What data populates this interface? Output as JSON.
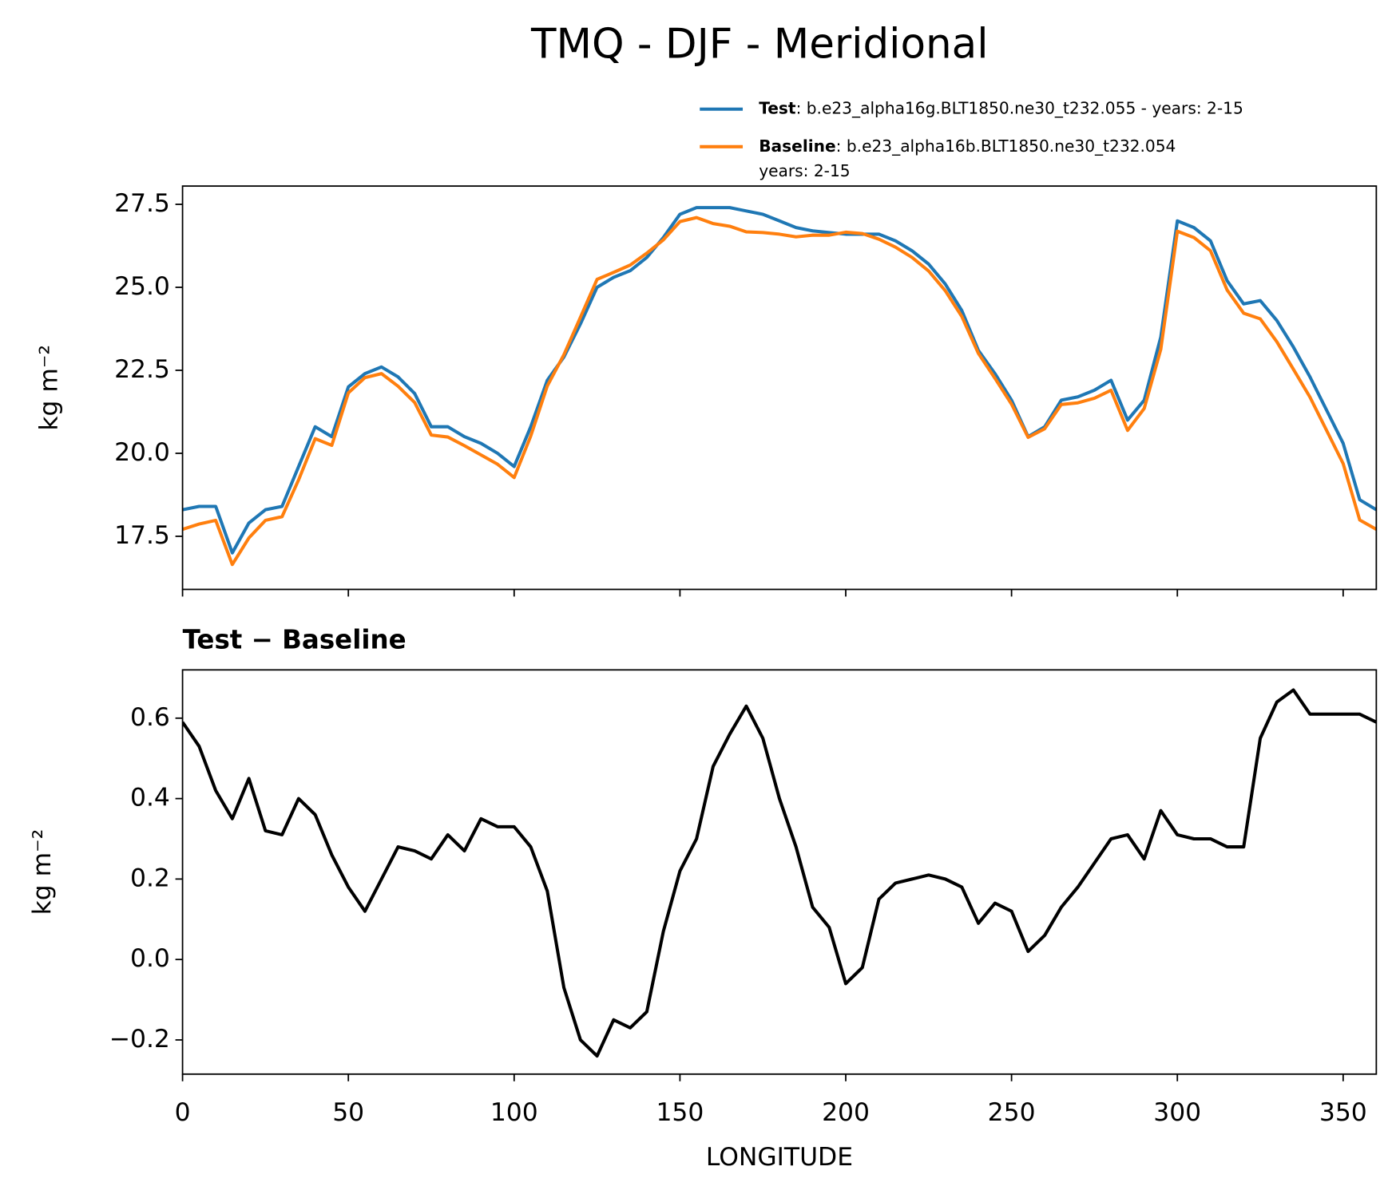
{
  "chart_data": [
    {
      "type": "line",
      "title": "TMQ - DJF - Meridional",
      "ylabel": "kg m⁻²",
      "x": [
        0,
        5,
        10,
        15,
        20,
        25,
        30,
        35,
        40,
        45,
        50,
        55,
        60,
        65,
        70,
        75,
        80,
        85,
        90,
        95,
        100,
        105,
        110,
        115,
        120,
        125,
        130,
        135,
        140,
        145,
        150,
        155,
        160,
        165,
        170,
        175,
        180,
        185,
        190,
        195,
        200,
        205,
        210,
        215,
        220,
        225,
        230,
        235,
        240,
        245,
        250,
        255,
        260,
        265,
        270,
        275,
        280,
        285,
        290,
        295,
        300,
        305,
        310,
        315,
        320,
        325,
        330,
        335,
        340,
        345,
        350,
        355,
        360
      ],
      "series": [
        {
          "name": "Test",
          "legend_text": [
            ": b.e23_alpha16g.BLT1850.ne30_t232.055 - years: 2-15"
          ],
          "color": "#1f77b4",
          "values": [
            18.3,
            18.4,
            18.4,
            17.0,
            17.9,
            18.3,
            18.4,
            19.6,
            20.8,
            20.5,
            22.0,
            22.4,
            22.6,
            22.3,
            21.8,
            20.8,
            20.8,
            20.5,
            20.3,
            20.0,
            19.6,
            20.8,
            22.2,
            22.9,
            23.9,
            25.0,
            25.3,
            25.5,
            25.9,
            26.5,
            27.2,
            27.4,
            27.4,
            27.4,
            27.3,
            27.2,
            27.0,
            26.8,
            26.7,
            26.65,
            26.6,
            26.6,
            26.6,
            26.4,
            26.1,
            25.7,
            25.1,
            24.3,
            23.1,
            22.4,
            21.6,
            20.5,
            20.8,
            21.6,
            21.7,
            21.9,
            22.2,
            21.0,
            21.6,
            23.5,
            27.0,
            26.8,
            26.4,
            25.2,
            24.5,
            24.6,
            24.0,
            23.2,
            22.3,
            21.3,
            20.3,
            18.6,
            18.3
          ]
        },
        {
          "name": "Baseline",
          "legend_text": [
            ": b.e23_alpha16b.BLT1850.ne30_t232.054",
            "years: 2-15"
          ],
          "color": "#ff7f0e",
          "values": [
            17.71,
            17.87,
            17.98,
            16.65,
            17.45,
            17.98,
            18.09,
            19.2,
            20.44,
            20.24,
            21.82,
            22.28,
            22.4,
            22.02,
            21.53,
            20.55,
            20.49,
            20.23,
            19.95,
            19.67,
            19.27,
            20.52,
            22.03,
            22.97,
            24.1,
            25.24,
            25.45,
            25.67,
            26.03,
            26.43,
            26.98,
            27.1,
            26.92,
            26.84,
            26.67,
            26.65,
            26.6,
            26.52,
            26.57,
            26.57,
            26.66,
            26.62,
            26.45,
            26.21,
            25.9,
            25.49,
            24.9,
            24.12,
            23.01,
            22.26,
            21.48,
            20.48,
            20.74,
            21.47,
            21.52,
            21.66,
            21.9,
            20.69,
            21.35,
            23.13,
            26.69,
            26.5,
            26.1,
            24.92,
            24.22,
            24.05,
            23.36,
            22.53,
            21.69,
            20.69,
            19.69,
            17.99,
            17.71
          ]
        }
      ],
      "xlim": [
        0,
        360
      ],
      "xticks": [
        0,
        50,
        100,
        150,
        200,
        250,
        300,
        350
      ],
      "show_xtick_labels": false,
      "ylim": [
        15.9,
        28.05
      ],
      "yticks": [
        17.5,
        {
          "value": 20,
          "label": "20.0"
        },
        22.5,
        {
          "value": 25,
          "label": "25.0"
        },
        27.5
      ],
      "legend": "upper right"
    },
    {
      "type": "line",
      "title": "Test − Baseline",
      "ylabel": "kg m⁻²",
      "xlabel": "LONGITUDE",
      "x": [
        0,
        5,
        10,
        15,
        20,
        25,
        30,
        35,
        40,
        45,
        50,
        55,
        60,
        65,
        70,
        75,
        80,
        85,
        90,
        95,
        100,
        105,
        110,
        115,
        120,
        125,
        130,
        135,
        140,
        145,
        150,
        155,
        160,
        165,
        170,
        175,
        180,
        185,
        190,
        195,
        200,
        205,
        210,
        215,
        220,
        225,
        230,
        235,
        240,
        245,
        250,
        255,
        260,
        265,
        270,
        275,
        280,
        285,
        290,
        295,
        300,
        305,
        310,
        315,
        320,
        325,
        330,
        335,
        340,
        345,
        350,
        355,
        360
      ],
      "values": [
        0.59,
        0.53,
        0.42,
        0.35,
        0.45,
        0.32,
        0.31,
        0.4,
        0.36,
        0.26,
        0.18,
        0.12,
        0.2,
        0.28,
        0.27,
        0.25,
        0.31,
        0.27,
        0.35,
        0.33,
        0.33,
        0.28,
        0.17,
        -0.07,
        -0.2,
        -0.24,
        -0.15,
        -0.17,
        -0.13,
        0.07,
        0.22,
        0.3,
        0.48,
        0.56,
        0.63,
        0.55,
        0.4,
        0.28,
        0.13,
        0.08,
        -0.06,
        -0.02,
        0.15,
        0.19,
        0.2,
        0.21,
        0.2,
        0.18,
        0.09,
        0.14,
        0.12,
        0.02,
        0.06,
        0.13,
        0.18,
        0.24,
        0.3,
        0.31,
        0.25,
        0.37,
        0.31,
        0.3,
        0.3,
        0.28,
        0.28,
        0.55,
        0.64,
        0.67,
        0.61,
        0.61,
        0.61,
        0.61,
        0.59
      ],
      "color": "#000000",
      "xlim": [
        0,
        360
      ],
      "xticks": [
        0,
        50,
        100,
        150,
        200,
        250,
        300,
        350
      ],
      "show_xtick_labels": true,
      "ylim": [
        -0.285,
        0.72
      ],
      "yticks": [
        {
          "value": -0.2,
          "label": "−0.2"
        },
        {
          "value": 0,
          "label": "0.0"
        },
        0.2,
        0.4,
        0.6
      ]
    }
  ]
}
